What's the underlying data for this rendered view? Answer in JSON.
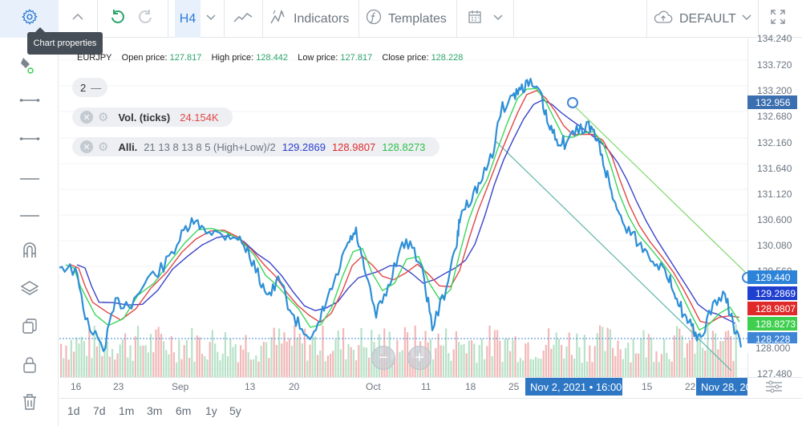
{
  "toolbar": {
    "interval": "H4",
    "indicators_label": "Indicators",
    "templates_label": "Templates",
    "layout_label": "DEFAULT"
  },
  "tooltip": {
    "text": "Chart properties"
  },
  "info_bar": {
    "symbol": "EURJPY",
    "open_label": "Open price:",
    "open_value": "127.817",
    "high_label": "High price:",
    "high_value": "128.442",
    "low_label": "Low price:",
    "low_value": "127.817",
    "close_label": "Close price:",
    "close_value": "128.228"
  },
  "legend": {
    "collapse_count": "2",
    "volume": {
      "name": "Vol. (ticks)",
      "value": "24.154K"
    },
    "alligator": {
      "name": "Alli.",
      "params": "21 13 8 13 8 5 (High+Low)/2",
      "jaw": "129.2869",
      "teeth": "128.9807",
      "lips": "128.8273"
    }
  },
  "y_axis": {
    "labels": [
      "134.240",
      "133.720",
      "133.200",
      "132.680",
      "132.160",
      "131.640",
      "131.120",
      "130.600",
      "130.080",
      "129.560",
      "127.480"
    ],
    "tags": [
      {
        "text": "132.956",
        "color": "#3b6fb0"
      },
      {
        "text": "129.440",
        "color": "#2d83d8"
      },
      {
        "text": "129.2869",
        "color": "#1f3fcf"
      },
      {
        "text": "128.9807",
        "color": "#e02a2a"
      },
      {
        "text": "128.8273",
        "color": "#3fcf4e"
      },
      {
        "text": "128.228",
        "color": "#3f86d6"
      },
      {
        "text": "128.000",
        "color": "#ffffff"
      }
    ]
  },
  "x_axis": {
    "labels": [
      "16",
      "23",
      "Sep",
      "13",
      "20",
      "Oct",
      "11",
      "18",
      "25",
      "15",
      "22"
    ],
    "crosshair_date": "Nov 2, 2021 • 16:00",
    "last_date": "Nov 28, 20"
  },
  "periods": [
    "1d",
    "7d",
    "1m",
    "3m",
    "6m",
    "1y",
    "5y"
  ],
  "colors": {
    "price": "#2d8fd6",
    "jaw": "#3a43c9",
    "teeth": "#e24747",
    "lips": "#3ad65a",
    "trend": "#7fd86b",
    "trend2": "#5fb3a8"
  }
}
